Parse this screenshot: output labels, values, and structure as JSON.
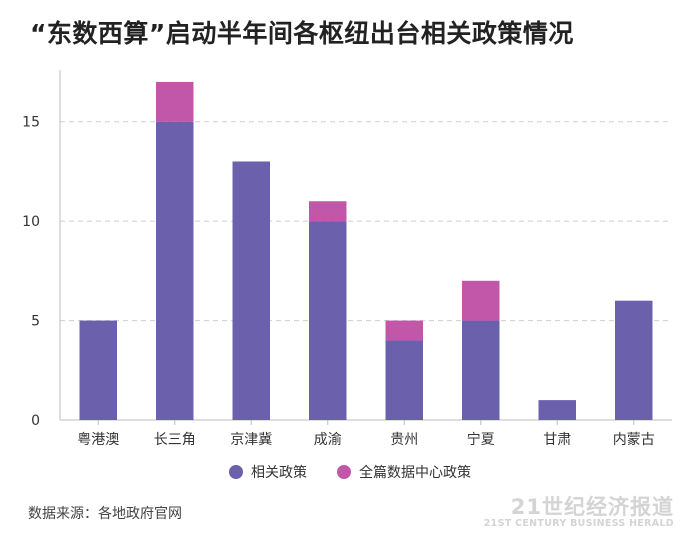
{
  "chart_data": {
    "type": "bar",
    "stacked": true,
    "title": "“东数西算”启动半年间各枢纽出台相关政策情况",
    "categories": [
      "粤港澳",
      "长三角",
      "京津冀",
      "成渝",
      "贵州",
      "宁夏",
      "甘肃",
      "内蒙古"
    ],
    "series": [
      {
        "name": "相关政策",
        "color": "#6b60ac",
        "values": [
          5,
          15,
          13,
          10,
          4,
          5,
          1,
          6
        ]
      },
      {
        "name": "全篇数据中心政策",
        "color": "#c257a9",
        "values": [
          0,
          2,
          0,
          1,
          1,
          2,
          0,
          0
        ]
      }
    ],
    "yticks": [
      0,
      5,
      10,
      15
    ],
    "ylim": [
      0,
      17.6
    ],
    "grid": true,
    "legend": "bottom"
  },
  "source": "数据来源：各地政府官网",
  "watermark": {
    "cn": "21世纪经济报道",
    "en": "21ST CENTURY BUSINESS HERALD"
  }
}
